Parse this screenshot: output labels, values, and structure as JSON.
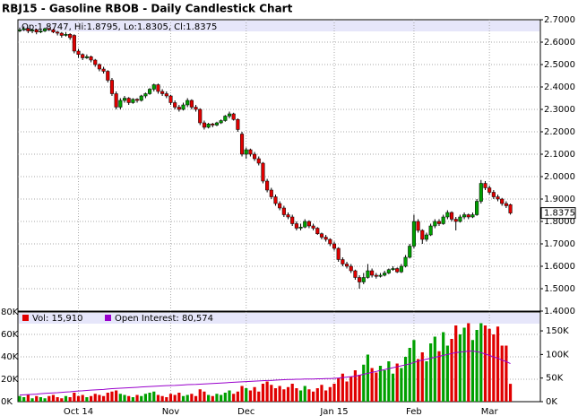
{
  "chart_data": {
    "type": "candlestick",
    "title": "RBJ15 - Gasoline RBOB - Daily Candlestick Chart",
    "ohlc_label": "Op:1.8747, Hi:1.8795, Lo:1.8305, Cl:1.8375",
    "last_label": "1.8375",
    "volume_label": "Vol: 15,910",
    "oi_label": "Open Interest: 80,574",
    "up_color": "#00a000",
    "down_color": "#e00000",
    "oi_color": "#9900cc",
    "grid": true,
    "ylim": [
      1.4,
      2.7
    ],
    "yticks": [
      {
        "value": 1.4,
        "label": "1.4000"
      },
      {
        "value": 1.5,
        "label": "1.5000"
      },
      {
        "value": 1.6,
        "label": "1.6000"
      },
      {
        "value": 1.7,
        "label": "1.7000"
      },
      {
        "value": 1.8,
        "label": "1.8000"
      },
      {
        "value": 1.9,
        "label": "1.9000"
      },
      {
        "value": 2.0,
        "label": "2.0000"
      },
      {
        "value": 2.1,
        "label": "2.1000"
      },
      {
        "value": 2.2,
        "label": "2.2000"
      },
      {
        "value": 2.3,
        "label": "2.3000"
      },
      {
        "value": 2.4,
        "label": "2.4000"
      },
      {
        "value": 2.5,
        "label": "2.5000"
      },
      {
        "value": 2.6,
        "label": "2.6000"
      },
      {
        "value": 2.7,
        "label": "2.7000"
      }
    ],
    "xticks": [
      {
        "value": 14,
        "label": "Oct 14"
      },
      {
        "value": 36,
        "label": "Nov"
      },
      {
        "value": 54,
        "label": "Dec"
      },
      {
        "value": 75,
        "label": "Jan 15"
      },
      {
        "value": 94,
        "label": "Feb"
      },
      {
        "value": 112,
        "label": "Mar"
      }
    ],
    "vlim": [
      0,
      80000
    ],
    "vticks": [
      {
        "value": 0,
        "label": "0K"
      },
      {
        "value": 20000,
        "label": "20K"
      },
      {
        "value": 40000,
        "label": "40K"
      },
      {
        "value": 60000,
        "label": "60K"
      },
      {
        "value": 80000,
        "label": "80K"
      }
    ],
    "y2lim": [
      0,
      190000
    ],
    "y2ticks": [
      {
        "value": 0,
        "label": "0K"
      },
      {
        "value": 50000,
        "label": "50K"
      },
      {
        "value": 100000,
        "label": "100K"
      },
      {
        "value": 150000,
        "label": "150K"
      }
    ],
    "candles": [
      [
        2.65,
        2.665,
        2.645,
        2.655
      ],
      [
        2.655,
        2.67,
        2.65,
        2.66
      ],
      [
        2.66,
        2.665,
        2.64,
        2.65
      ],
      [
        2.65,
        2.66,
        2.64,
        2.655
      ],
      [
        2.655,
        2.66,
        2.635,
        2.645
      ],
      [
        2.645,
        2.655,
        2.64,
        2.65
      ],
      [
        2.65,
        2.665,
        2.645,
        2.66
      ],
      [
        2.66,
        2.665,
        2.65,
        2.655
      ],
      [
        2.655,
        2.66,
        2.64,
        2.645
      ],
      [
        2.645,
        2.65,
        2.63,
        2.64
      ],
      [
        2.64,
        2.645,
        2.62,
        2.63
      ],
      [
        2.63,
        2.645,
        2.625,
        2.635
      ],
      [
        2.635,
        2.64,
        2.61,
        2.62
      ],
      [
        2.63,
        2.635,
        2.55,
        2.56
      ],
      [
        2.56,
        2.57,
        2.53,
        2.545
      ],
      [
        2.545,
        2.55,
        2.52,
        2.53
      ],
      [
        2.53,
        2.545,
        2.525,
        2.535
      ],
      [
        2.535,
        2.54,
        2.51,
        2.52
      ],
      [
        2.52,
        2.525,
        2.49,
        2.5
      ],
      [
        2.5,
        2.505,
        2.47,
        2.48
      ],
      [
        2.48,
        2.49,
        2.46,
        2.47
      ],
      [
        2.47,
        2.475,
        2.42,
        2.43
      ],
      [
        2.43,
        2.44,
        2.36,
        2.37
      ],
      [
        2.37,
        2.38,
        2.3,
        2.31
      ],
      [
        2.31,
        2.35,
        2.3,
        2.34
      ],
      [
        2.34,
        2.36,
        2.33,
        2.35
      ],
      [
        2.35,
        2.355,
        2.32,
        2.33
      ],
      [
        2.33,
        2.35,
        2.325,
        2.345
      ],
      [
        2.345,
        2.35,
        2.33,
        2.34
      ],
      [
        2.34,
        2.365,
        2.335,
        2.36
      ],
      [
        2.36,
        2.375,
        2.35,
        2.37
      ],
      [
        2.37,
        2.395,
        2.365,
        2.39
      ],
      [
        2.39,
        2.415,
        2.38,
        2.41
      ],
      [
        2.41,
        2.415,
        2.37,
        2.38
      ],
      [
        2.38,
        2.39,
        2.36,
        2.37
      ],
      [
        2.37,
        2.38,
        2.35,
        2.36
      ],
      [
        2.36,
        2.365,
        2.32,
        2.33
      ],
      [
        2.33,
        2.34,
        2.3,
        2.31
      ],
      [
        2.31,
        2.32,
        2.29,
        2.3
      ],
      [
        2.3,
        2.33,
        2.295,
        2.32
      ],
      [
        2.32,
        2.35,
        2.31,
        2.34
      ],
      [
        2.34,
        2.345,
        2.3,
        2.31
      ],
      [
        2.31,
        2.32,
        2.29,
        2.3
      ],
      [
        2.3,
        2.305,
        2.23,
        2.24
      ],
      [
        2.24,
        2.25,
        2.21,
        2.22
      ],
      [
        2.22,
        2.24,
        2.215,
        2.235
      ],
      [
        2.235,
        2.24,
        2.22,
        2.23
      ],
      [
        2.23,
        2.245,
        2.225,
        2.24
      ],
      [
        2.24,
        2.255,
        2.235,
        2.25
      ],
      [
        2.25,
        2.275,
        2.245,
        2.27
      ],
      [
        2.27,
        2.29,
        2.26,
        2.28
      ],
      [
        2.28,
        2.285,
        2.25,
        2.255
      ],
      [
        2.255,
        2.26,
        2.2,
        2.21
      ],
      [
        2.19,
        2.2,
        2.09,
        2.1
      ],
      [
        2.1,
        2.13,
        2.08,
        2.12
      ],
      [
        2.12,
        2.125,
        2.09,
        2.1
      ],
      [
        2.1,
        2.11,
        2.07,
        2.08
      ],
      [
        2.08,
        2.09,
        2.05,
        2.06
      ],
      [
        2.06,
        2.065,
        1.97,
        1.98
      ],
      [
        1.98,
        1.99,
        1.93,
        1.94
      ],
      [
        1.94,
        1.95,
        1.9,
        1.91
      ],
      [
        1.91,
        1.92,
        1.87,
        1.88
      ],
      [
        1.88,
        1.89,
        1.85,
        1.86
      ],
      [
        1.86,
        1.87,
        1.82,
        1.83
      ],
      [
        1.83,
        1.84,
        1.81,
        1.82
      ],
      [
        1.82,
        1.83,
        1.78,
        1.79
      ],
      [
        1.79,
        1.8,
        1.76,
        1.77
      ],
      [
        1.77,
        1.79,
        1.76,
        1.775
      ],
      [
        1.775,
        1.81,
        1.77,
        1.8
      ],
      [
        1.8,
        1.805,
        1.77,
        1.78
      ],
      [
        1.78,
        1.79,
        1.76,
        1.77
      ],
      [
        1.77,
        1.775,
        1.74,
        1.745
      ],
      [
        1.745,
        1.75,
        1.72,
        1.73
      ],
      [
        1.73,
        1.74,
        1.71,
        1.72
      ],
      [
        1.72,
        1.725,
        1.69,
        1.7
      ],
      [
        1.7,
        1.71,
        1.67,
        1.68
      ],
      [
        1.68,
        1.685,
        1.62,
        1.63
      ],
      [
        1.63,
        1.64,
        1.6,
        1.61
      ],
      [
        1.61,
        1.62,
        1.59,
        1.6
      ],
      [
        1.6,
        1.61,
        1.57,
        1.58
      ],
      [
        1.58,
        1.585,
        1.54,
        1.55
      ],
      [
        1.55,
        1.56,
        1.5,
        1.53
      ],
      [
        1.53,
        1.57,
        1.52,
        1.55
      ],
      [
        1.55,
        1.61,
        1.545,
        1.58
      ],
      [
        1.58,
        1.59,
        1.55,
        1.56
      ],
      [
        1.56,
        1.57,
        1.545,
        1.555
      ],
      [
        1.555,
        1.57,
        1.55,
        1.56
      ],
      [
        1.56,
        1.58,
        1.555,
        1.57
      ],
      [
        1.57,
        1.59,
        1.565,
        1.585
      ],
      [
        1.585,
        1.6,
        1.58,
        1.59
      ],
      [
        1.59,
        1.595,
        1.57,
        1.575
      ],
      [
        1.575,
        1.61,
        1.57,
        1.6
      ],
      [
        1.6,
        1.65,
        1.595,
        1.64
      ],
      [
        1.64,
        1.7,
        1.635,
        1.69
      ],
      [
        1.69,
        1.83,
        1.68,
        1.8
      ],
      [
        1.8,
        1.81,
        1.75,
        1.76
      ],
      [
        1.76,
        1.765,
        1.7,
        1.72
      ],
      [
        1.72,
        1.75,
        1.71,
        1.74
      ],
      [
        1.74,
        1.79,
        1.735,
        1.78
      ],
      [
        1.78,
        1.81,
        1.77,
        1.8
      ],
      [
        1.8,
        1.81,
        1.78,
        1.79
      ],
      [
        1.79,
        1.83,
        1.785,
        1.82
      ],
      [
        1.82,
        1.85,
        1.81,
        1.84
      ],
      [
        1.84,
        1.845,
        1.8,
        1.81
      ],
      [
        1.81,
        1.82,
        1.76,
        1.8
      ],
      [
        1.8,
        1.83,
        1.795,
        1.82
      ],
      [
        1.82,
        1.84,
        1.81,
        1.83
      ],
      [
        1.83,
        1.835,
        1.81,
        1.82
      ],
      [
        1.82,
        1.84,
        1.815,
        1.83
      ],
      [
        1.83,
        1.9,
        1.825,
        1.89
      ],
      [
        1.89,
        1.985,
        1.88,
        1.97
      ],
      [
        1.97,
        1.98,
        1.94,
        1.95
      ],
      [
        1.95,
        1.96,
        1.92,
        1.93
      ],
      [
        1.93,
        1.94,
        1.9,
        1.91
      ],
      [
        1.91,
        1.92,
        1.89,
        1.9
      ],
      [
        1.9,
        1.905,
        1.87,
        1.88
      ],
      [
        1.88,
        1.89,
        1.86,
        1.87
      ],
      [
        1.8747,
        1.8795,
        1.8305,
        1.8375
      ]
    ],
    "volume": [
      5000,
      4000,
      6000,
      3000,
      5000,
      4000,
      3000,
      5000,
      6000,
      4000,
      3000,
      5000,
      4000,
      8000,
      5000,
      6000,
      4000,
      5000,
      7000,
      6000,
      5000,
      8000,
      9000,
      10000,
      7000,
      6000,
      5000,
      4000,
      6000,
      5000,
      7000,
      8000,
      9000,
      6000,
      5000,
      4000,
      7000,
      6000,
      8000,
      5000,
      6000,
      7000,
      5000,
      11000,
      9000,
      6000,
      5000,
      7000,
      6000,
      8000,
      10000,
      7000,
      9000,
      14000,
      12000,
      10000,
      13000,
      9000,
      16000,
      18000,
      15000,
      12000,
      14000,
      11000,
      13000,
      16000,
      12000,
      10000,
      14000,
      11000,
      9000,
      12000,
      15000,
      10000,
      13000,
      16000,
      21000,
      25000,
      18000,
      22000,
      28000,
      24000,
      33000,
      42000,
      30000,
      26000,
      32000,
      28000,
      36000,
      25000,
      34000,
      30000,
      40000,
      48000,
      55000,
      38000,
      44000,
      36000,
      52000,
      58000,
      45000,
      62000,
      50000,
      56000,
      68000,
      60000,
      66000,
      70000,
      55000,
      64000,
      70000,
      68000,
      65000,
      60000,
      67000,
      50000,
      50000,
      15910
    ],
    "open_interest": [
      14000,
      14500,
      15000,
      15500,
      16000,
      16800,
      17500,
      18000,
      18500,
      19000,
      19800,
      20500,
      21000,
      21800,
      22500,
      23000,
      23800,
      24500,
      25000,
      25500,
      26000,
      26800,
      27500,
      28000,
      28500,
      29000,
      29500,
      30000,
      30500,
      31000,
      31500,
      32000,
      32500,
      33000,
      33500,
      34000,
      34200,
      34500,
      35000,
      35500,
      36000,
      36300,
      36500,
      37000,
      37500,
      38000,
      38500,
      39000,
      39500,
      40000,
      40500,
      41000,
      41500,
      42000,
      42500,
      43000,
      43500,
      44000,
      44500,
      45000,
      45000,
      45500,
      46000,
      46500,
      47000,
      47000,
      47500,
      47500,
      48000,
      48000,
      48000,
      48500,
      48500,
      49000,
      49000,
      49500,
      50000,
      51000,
      52000,
      53000,
      54000,
      56000,
      58000,
      60000,
      62000,
      64000,
      66000,
      68000,
      70000,
      72000,
      74000,
      76000,
      78000,
      80000,
      83000,
      86000,
      88000,
      90000,
      92000,
      94000,
      96000,
      98000,
      100000,
      102000,
      104000,
      105000,
      106000,
      107000,
      107000,
      106000,
      104000,
      101000,
      98000,
      95000,
      92000,
      88000,
      85000,
      80574
    ]
  }
}
